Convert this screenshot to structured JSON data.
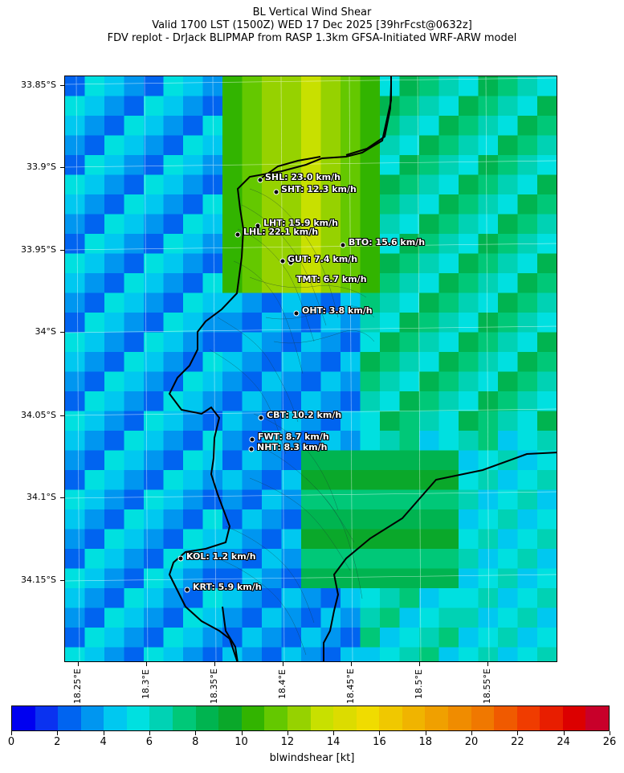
{
  "titles": {
    "line1": "BL Vertical Wind Shear",
    "line2": "Valid 1700 LST (1500Z) WED 17 Dec 2025 [39hrFcst@0632z]",
    "line3": "FDV replot - DrJack BLIPMAP from RASP 1.3km GFSA-Initiated WRF-ARW model"
  },
  "axes": {
    "lat_labels": [
      "33.85°S",
      "33.9°S",
      "33.95°S",
      "34°S",
      "34.05°S",
      "34.1°S",
      "34.15°S"
    ],
    "lon_labels": [
      "18.25°E",
      "18.3°E",
      "18.35°E",
      "18.4°E",
      "18.45°E",
      "18.5°E",
      "18.55°E"
    ]
  },
  "colorbar": {
    "title": "blwindshear [kt]",
    "tick_labels": [
      "0",
      "2",
      "4",
      "6",
      "8",
      "10",
      "12",
      "14",
      "16",
      "18",
      "20",
      "22",
      "24",
      "26"
    ],
    "colors": [
      "#0000f0",
      "#0a32f0",
      "#0064f0",
      "#0096f0",
      "#00c8f0",
      "#00e0e0",
      "#00d2b4",
      "#00c878",
      "#00b450",
      "#0aa82a",
      "#32b400",
      "#64c800",
      "#96d200",
      "#c8e000",
      "#dcdc00",
      "#f0dc00",
      "#f0c800",
      "#f0b400",
      "#f0a000",
      "#f08c00",
      "#f07800",
      "#f05a00",
      "#f03c00",
      "#e81e00",
      "#dc0000",
      "#c8002a"
    ]
  },
  "stations": [
    {
      "label": "SHL: 23.0 km/h"
    },
    {
      "label": "SHT: 12.3 km/h"
    },
    {
      "label": "LHT: 15.9 km/h"
    },
    {
      "label": "LHL: 22.1 km/h"
    },
    {
      "label": "BTO: 15.6 km/h"
    },
    {
      "label": "GUT: 7.4 km/h"
    },
    {
      "label": "TMT: 6.7 km/h"
    },
    {
      "label": "OHT: 3.8 km/h"
    },
    {
      "label": "CBT: 10.2 km/h"
    },
    {
      "label": "FWT: 8.7 km/h"
    },
    {
      "label": "NHT: 8.3 km/h"
    },
    {
      "label": "KOL: 1.2 km/h"
    },
    {
      "label": "KRT: 5.9 km/h"
    }
  ]
}
